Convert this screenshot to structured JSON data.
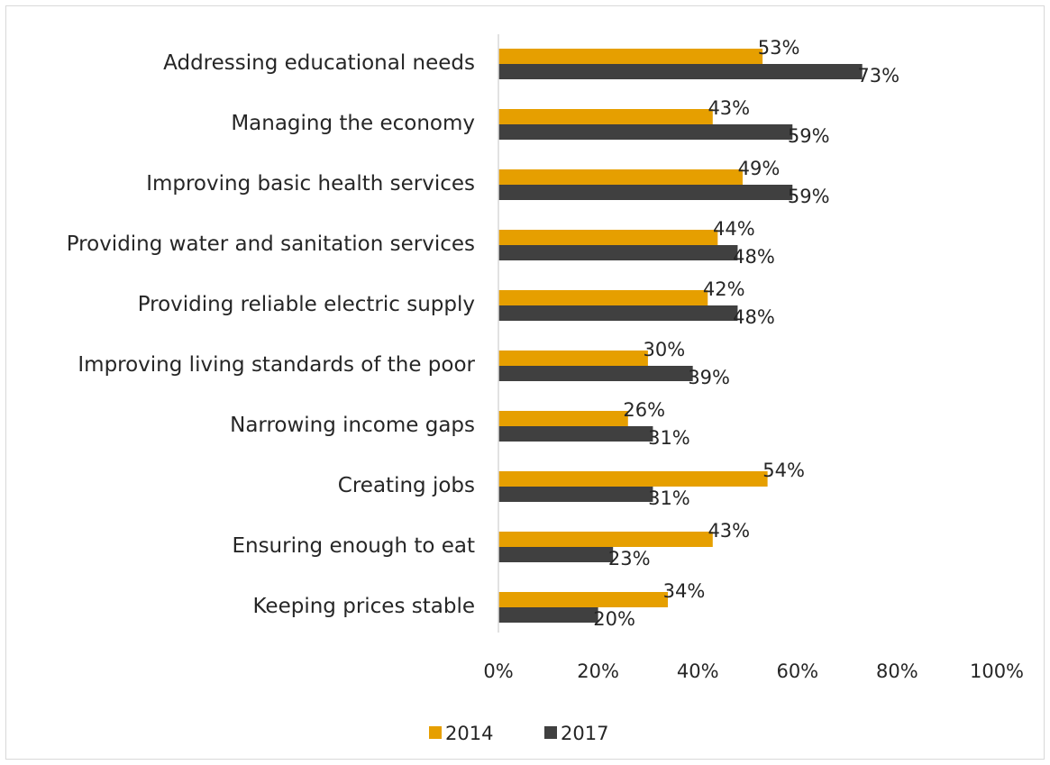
{
  "chart_data": {
    "type": "bar",
    "orientation": "horizontal",
    "categories": [
      "Addressing educational needs",
      "Managing the economy",
      "Improving basic health services",
      "Providing water and sanitation services",
      "Providing reliable electric supply",
      "Improving living standards of the poor",
      "Narrowing income gaps",
      "Creating jobs",
      "Ensuring enough to eat",
      "Keeping prices stable"
    ],
    "series": [
      {
        "name": "2014",
        "color": "#E69F00",
        "values": [
          53,
          43,
          49,
          44,
          42,
          30,
          26,
          54,
          43,
          34
        ],
        "labels": [
          "53%",
          "43%",
          "49%",
          "44%",
          "42%",
          "30%",
          "26%",
          "54%",
          "43%",
          "34%"
        ]
      },
      {
        "name": "2017",
        "color": "#404040",
        "values": [
          73,
          59,
          59,
          48,
          48,
          39,
          31,
          31,
          23,
          20
        ],
        "labels": [
          "73%",
          "59%",
          "59%",
          "48%",
          "48%",
          "39%",
          "31%",
          "31%",
          "23%",
          "20%"
        ]
      }
    ],
    "xlim": [
      0,
      100
    ],
    "x_ticks": [
      "0%",
      "20%",
      "40%",
      "60%",
      "80%",
      "100%"
    ],
    "grid": false,
    "legend_position": "bottom"
  }
}
